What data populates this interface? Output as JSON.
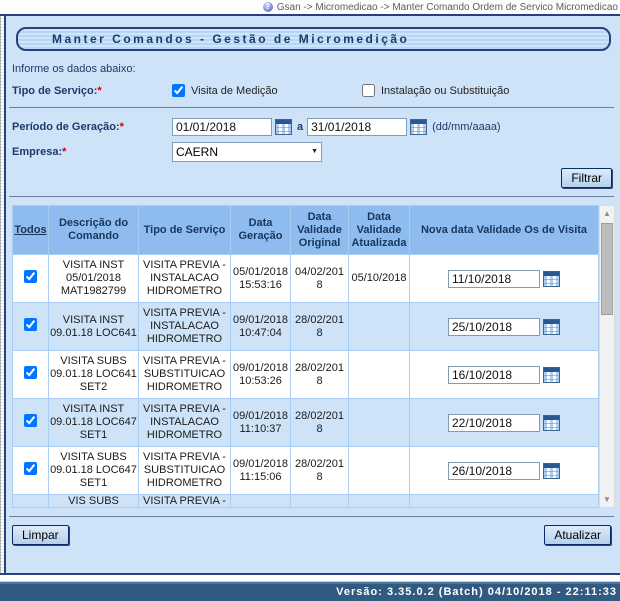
{
  "breadcrumb": {
    "icon_glyph": "?",
    "text": "Gsan -> Micromedicao -> Manter Comando Ordem de Servico Micromedicao"
  },
  "title": "Manter Comandos - Gestão de Micromedição",
  "form": {
    "intro": "Informe os dados abaixo:",
    "required_mark": "*",
    "tipo_servico": {
      "label": "Tipo de Serviço:",
      "options": [
        {
          "label": "Visita de Medição",
          "checked": true
        },
        {
          "label": "Instalação ou Substituição",
          "checked": false
        }
      ]
    },
    "periodo": {
      "label": "Período de Geração:",
      "from": "01/01/2018",
      "separator": "a",
      "to": "31/01/2018",
      "format_hint": "(dd/mm/aaaa)"
    },
    "empresa": {
      "label": "Empresa:",
      "value": "CAERN"
    },
    "filtrar_label": "Filtrar"
  },
  "table": {
    "headers": [
      "Todos",
      "Descrição do Comando",
      "Tipo de Serviço",
      "Data Geração",
      "Data Validade Original",
      "Data Validade Atualizada",
      "Nova data Validade Os de Visita"
    ],
    "rows": [
      {
        "checked": true,
        "descricao": "VISITA INST 05/01/2018 MAT1982799",
        "tipo": "VISITA PREVIA - INSTALACAO HIDROMETRO",
        "geracao": "05/01/2018 15:53:16",
        "orig": "04/02/2018",
        "atual": "05/10/2018",
        "nova_data": "11/10/2018"
      },
      {
        "checked": true,
        "descricao": "VISITA INST 09.01.18 LOC641",
        "tipo": "VISITA PREVIA - INSTALACAO HIDROMETRO",
        "geracao": "09/01/2018 10:47:04",
        "orig": "28/02/2018",
        "atual": "",
        "nova_data": "25/10/2018"
      },
      {
        "checked": true,
        "descricao": "VISITA SUBS 09.01.18 LOC641 SET2",
        "tipo": "VISITA PREVIA - SUBSTITUICAO HIDROMETRO",
        "geracao": "09/01/2018 10:53:26",
        "orig": "28/02/2018",
        "atual": "",
        "nova_data": "16/10/2018"
      },
      {
        "checked": true,
        "descricao": "VISITA INST 09.01.18 LOC647 SET1",
        "tipo": "VISITA PREVIA - INSTALACAO HIDROMETRO",
        "geracao": "09/01/2018 11:10:37",
        "orig": "28/02/2018",
        "atual": "",
        "nova_data": "22/10/2018"
      },
      {
        "checked": true,
        "descricao": "VISITA SUBS 09.01.18 LOC647 SET1",
        "tipo": "VISITA PREVIA - SUBSTITUICAO HIDROMETRO",
        "geracao": "09/01/2018 11:15:06",
        "orig": "28/02/2018",
        "atual": "",
        "nova_data": "26/10/2018"
      }
    ],
    "partial_row": {
      "descricao": "VIS SUBS",
      "tipo": "VISITA PREVIA -"
    }
  },
  "actions": {
    "limpar": "Limpar",
    "atualizar": "Atualizar"
  },
  "icons": {
    "scroll_up": "▲",
    "scroll_down": "▼",
    "select_arrow": "▼"
  },
  "footer": {
    "version_text": "Versão: 3.35.0.2 (Batch) 04/10/2018 - 22:11:33"
  },
  "colors": {
    "window_bg": "#cfe3f8",
    "window_border": "#26417e",
    "table_header_bg": "#8fbcef",
    "row_alt_bg": "#cfe3f8",
    "footer_bg": "#315a80",
    "required": "#d00000"
  }
}
